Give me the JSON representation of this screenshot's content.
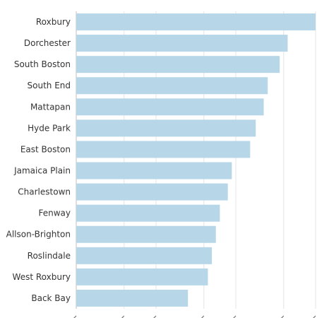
{
  "chart_data": {
    "type": "bar",
    "orientation": "horizontal",
    "title": "",
    "xlabel": "",
    "ylabel": "",
    "categories": [
      "Roxbury",
      "Dorchester",
      "South Boston",
      "South End",
      "Mattapan",
      "Hyde Park",
      "East Boston",
      "Jamaica Plain",
      "Charlestown",
      "Fenway",
      "Allson-Brighton",
      "Roslindale",
      "West Roxbury",
      "Back Bay"
    ],
    "values": [
      60,
      53,
      51,
      48,
      47,
      45,
      43.6,
      39,
      38,
      36,
      35,
      34,
      33,
      28
    ],
    "xlim": [
      0,
      60
    ],
    "x_ticks": [
      0,
      12,
      20,
      32,
      40,
      52,
      60
    ],
    "x_tick_labels_visible": false,
    "grid": "vertical",
    "legend": "none",
    "colors": {
      "bar": "#b7d7e9",
      "grid": "#e4e4e4",
      "axis": "#bfbfbf",
      "label": "#333333"
    }
  }
}
